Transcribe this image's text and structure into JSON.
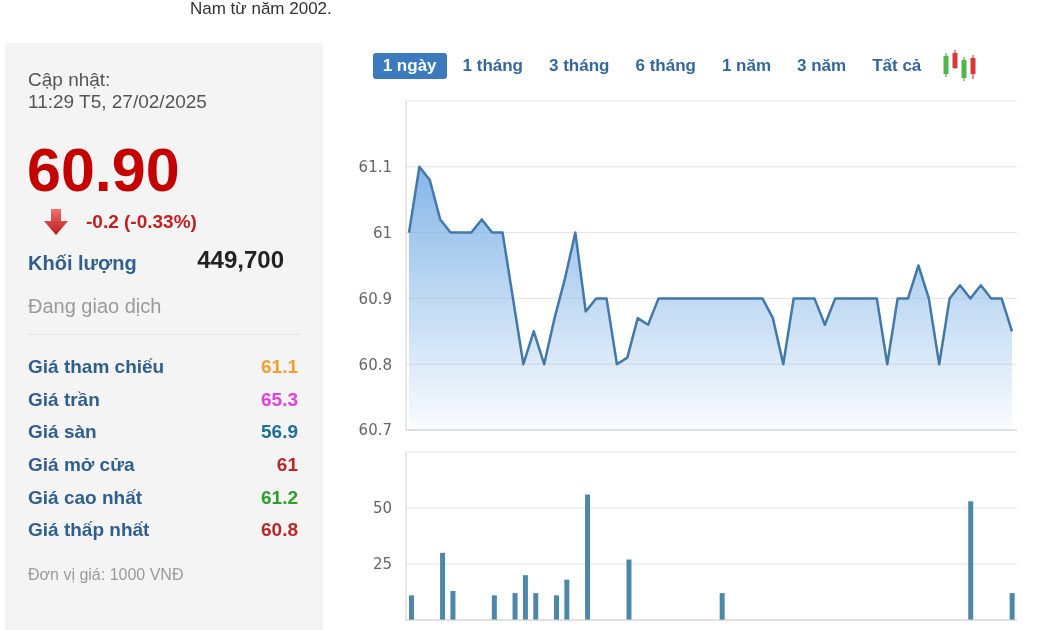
{
  "chart_data": [
    {
      "type": "other",
      "title": "60.90",
      "subtitle": "-0.2 (-0.33%)",
      "categories": [
        "Giá tham chiếu",
        "Giá trần",
        "Giá sàn",
        "Giá mở cửa",
        "Giá cao nhất",
        "Giá thấp nhất"
      ],
      "values": [
        61.1,
        65.3,
        56.9,
        61,
        61.2,
        60.8
      ],
      "data_labels": true,
      "annotations": [
        "Nam từ năm 2002.",
        "Cập nhật:",
        "11:29 T5, 27/02/2025",
        "Khối lượng",
        "449,700",
        "Đang giao dịch",
        "Đơn vị giá: 1000 VNĐ"
      ]
    },
    {
      "type": "area",
      "categories": [
        null,
        null,
        null,
        null,
        null,
        null,
        null,
        null,
        null,
        null,
        null,
        null,
        null,
        null,
        null,
        null,
        null,
        null,
        null,
        null,
        null,
        null,
        null,
        null,
        null,
        null,
        null,
        null,
        null,
        null,
        null,
        null,
        null,
        null,
        null,
        null,
        null,
        null,
        null,
        null,
        null,
        null,
        null,
        null,
        null,
        null,
        null,
        null,
        null,
        null,
        null,
        null,
        null,
        null,
        null,
        null,
        null,
        null,
        null
      ],
      "values": [
        61,
        61.1,
        61.08,
        61.02,
        61,
        61,
        61,
        61.02,
        61,
        61,
        60.9,
        60.8,
        60.85,
        60.8,
        60.87,
        60.93,
        61,
        60.88,
        60.9,
        60.9,
        60.8,
        60.81,
        60.87,
        60.86,
        60.9,
        60.9,
        60.9,
        60.9,
        60.9,
        60.9,
        60.9,
        60.9,
        60.9,
        60.9,
        60.9,
        60.87,
        60.8,
        60.9,
        60.9,
        60.9,
        60.86,
        60.9,
        60.9,
        60.9,
        60.9,
        60.9,
        60.8,
        60.9,
        60.9,
        60.95,
        60.9,
        60.8,
        60.9,
        60.92,
        60.9,
        60.92,
        60.9,
        60.9,
        60.85
      ],
      "color": "#4279a8",
      "ylim": [
        60.7,
        61.2
      ],
      "yticks": [
        60.7,
        60.8,
        60.9,
        61,
        61.1
      ],
      "grid": "y",
      "tick_labels": "y",
      "annotations": [
        "1 ngày",
        "1 tháng",
        "3 tháng",
        "6 tháng",
        "1 năm",
        "3 năm",
        "Tất cả"
      ]
    },
    {
      "type": "bar",
      "categories": [
        null,
        null,
        null,
        null,
        null,
        null,
        null,
        null,
        null,
        null,
        null,
        null,
        null,
        null,
        null,
        null,
        null,
        null,
        null,
        null,
        null,
        null,
        null,
        null,
        null,
        null,
        null,
        null,
        null,
        null,
        null,
        null,
        null,
        null,
        null,
        null,
        null,
        null,
        null,
        null,
        null,
        null,
        null,
        null,
        null,
        null,
        null,
        null,
        null,
        null,
        null,
        null,
        null,
        null,
        null,
        null,
        null,
        null,
        null
      ],
      "values": [
        11,
        null,
        null,
        30,
        13,
        null,
        null,
        null,
        11,
        null,
        12,
        20,
        12,
        null,
        11,
        18,
        null,
        56,
        null,
        null,
        null,
        27,
        null,
        null,
        null,
        null,
        null,
        null,
        null,
        null,
        12,
        null,
        null,
        null,
        null,
        null,
        null,
        null,
        null,
        null,
        null,
        null,
        null,
        null,
        null,
        null,
        null,
        null,
        null,
        null,
        null,
        null,
        null,
        null,
        53,
        null,
        null,
        null,
        12
      ],
      "color": "#4d87a8",
      "ylim": [
        0,
        75
      ],
      "yticks": [
        25,
        50
      ],
      "grid": "y",
      "tick_labels": "y"
    }
  ]
}
